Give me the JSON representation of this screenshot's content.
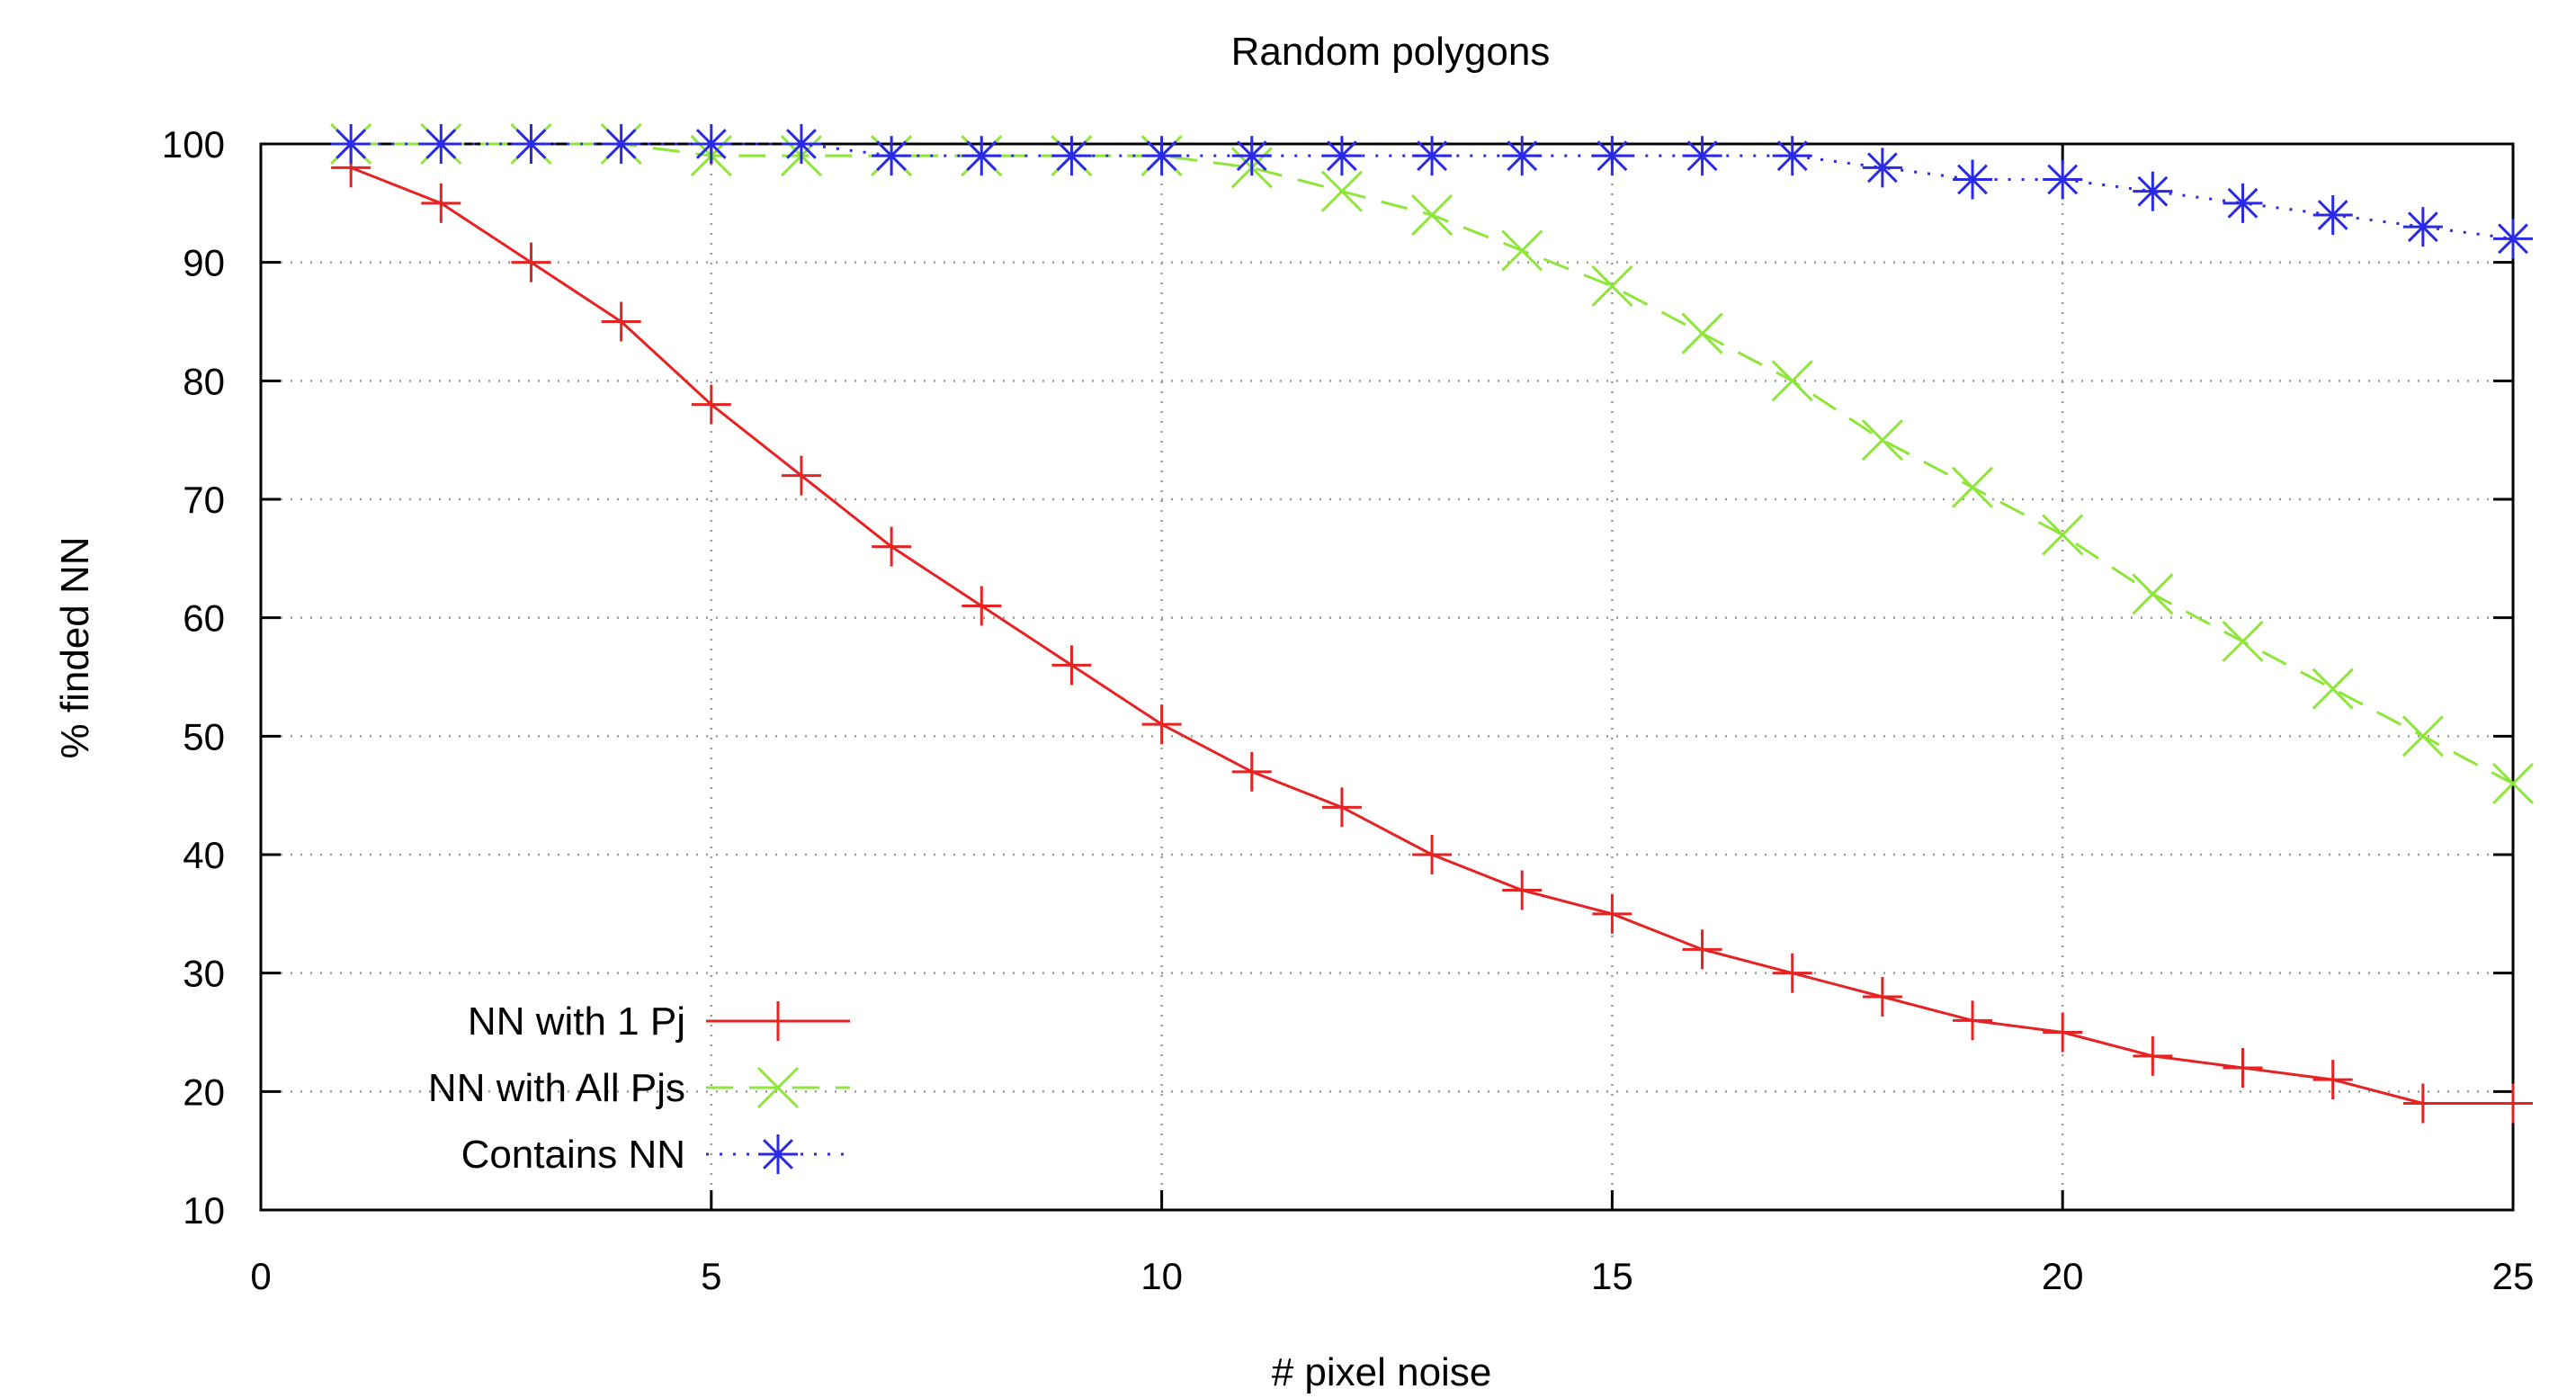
{
  "colors": {
    "nn1": "#e62222",
    "nnall": "#8ee63a",
    "contains": "#2a2ae6",
    "grid": "#9a9a9a",
    "axis": "#000000"
  },
  "chart_data": {
    "type": "line",
    "title": "Random polygons",
    "xlabel": "# pixel noise",
    "ylabel": "% finded NN",
    "xlim": [
      0,
      25
    ],
    "ylim": [
      10,
      100
    ],
    "xticks": [
      0,
      5,
      10,
      15,
      20,
      25
    ],
    "yticks": [
      10,
      20,
      30,
      40,
      50,
      60,
      70,
      80,
      90,
      100
    ],
    "grid": true,
    "legend_position": "bottom-left",
    "x": [
      1,
      2,
      3,
      4,
      5,
      6,
      7,
      8,
      9,
      10,
      11,
      12,
      13,
      14,
      15,
      16,
      17,
      18,
      19,
      20,
      21,
      22,
      23,
      24,
      25
    ],
    "series": [
      {
        "name": "NN with 1 Pj",
        "style": "solid",
        "marker": "plus",
        "color": "#e62222",
        "values": [
          98,
          95,
          90,
          85,
          78,
          72,
          66,
          61,
          56,
          51,
          47,
          44,
          40,
          37,
          35,
          32,
          30,
          28,
          26,
          25,
          23,
          22,
          21,
          19,
          19
        ]
      },
      {
        "name": "NN with All Pjs",
        "style": "dashed",
        "marker": "cross",
        "color": "#8ee63a",
        "values": [
          100,
          100,
          100,
          100,
          99,
          99,
          99,
          99,
          99,
          99,
          98,
          96,
          94,
          91,
          88,
          84,
          80,
          75,
          71,
          67,
          62,
          58,
          54,
          50,
          46
        ]
      },
      {
        "name": "Contains NN",
        "style": "dotted",
        "marker": "star",
        "color": "#2a2ae6",
        "values": [
          100,
          100,
          100,
          100,
          100,
          100,
          99,
          99,
          99,
          99,
          99,
          99,
          99,
          99,
          99,
          99,
          99,
          98,
          97,
          97,
          96,
          95,
          94,
          93,
          92
        ]
      }
    ]
  }
}
